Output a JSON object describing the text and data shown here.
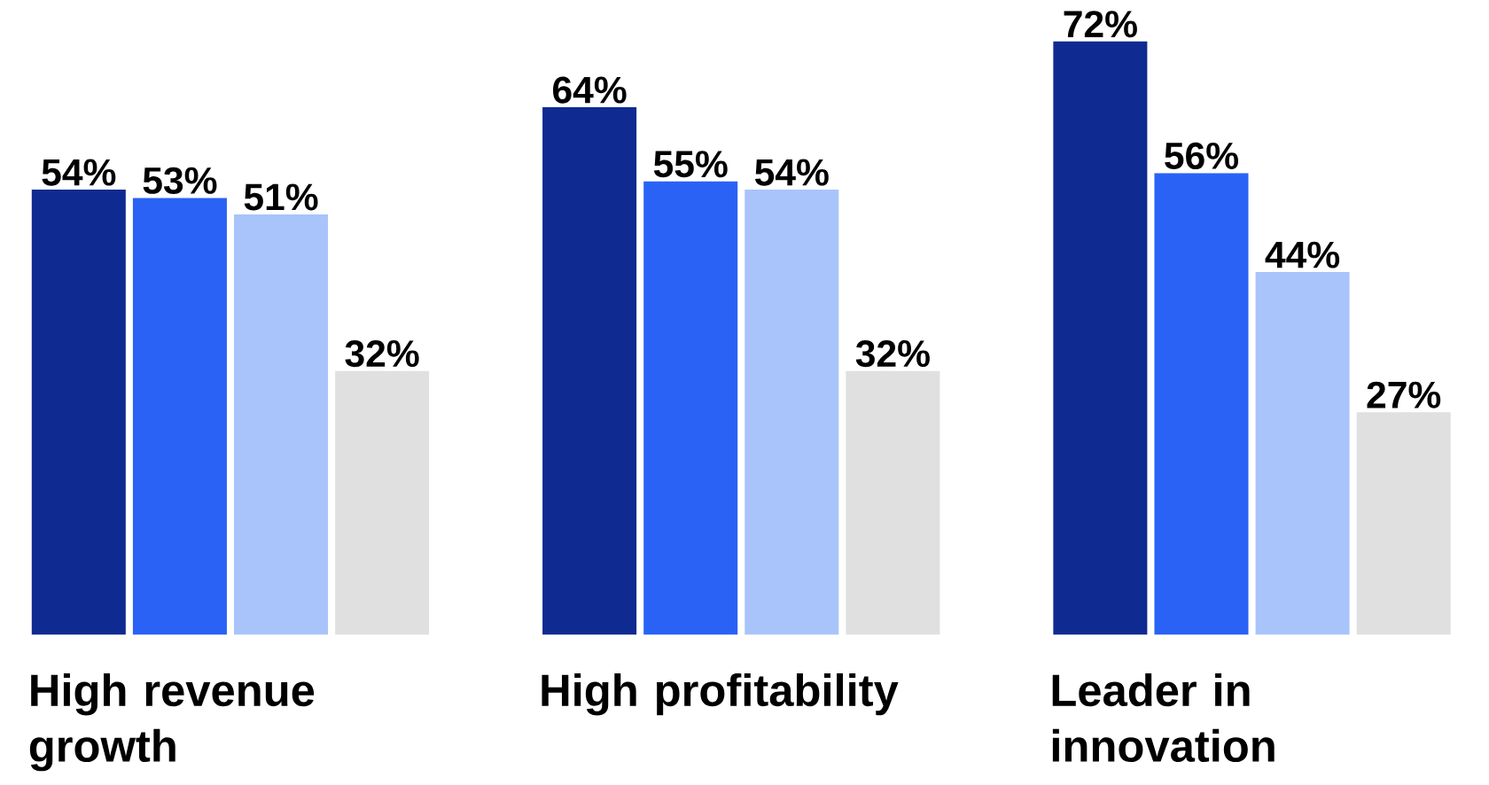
{
  "chart_data": {
    "type": "bar",
    "categories": [
      "High revenue growth",
      "High profitability",
      "Leader in innovation"
    ],
    "ylim": [
      0,
      72
    ],
    "tick_labels": "x",
    "series": [
      {
        "color": "#0f2a91",
        "values": [
          54,
          64,
          72
        ],
        "value_labels": [
          "54%",
          "64%",
          "72%"
        ]
      },
      {
        "color": "#2962f5",
        "values": [
          53,
          55,
          56
        ],
        "value_labels": [
          "53%",
          "55%",
          "56%"
        ]
      },
      {
        "color": "#a8c4fa",
        "values": [
          51,
          54,
          44
        ],
        "value_labels": [
          "51%",
          "54%",
          "44%"
        ]
      },
      {
        "color": "#e0e0e0",
        "values": [
          32,
          32,
          27
        ],
        "value_labels": [
          "32%",
          "32%",
          "27%"
        ]
      }
    ]
  }
}
